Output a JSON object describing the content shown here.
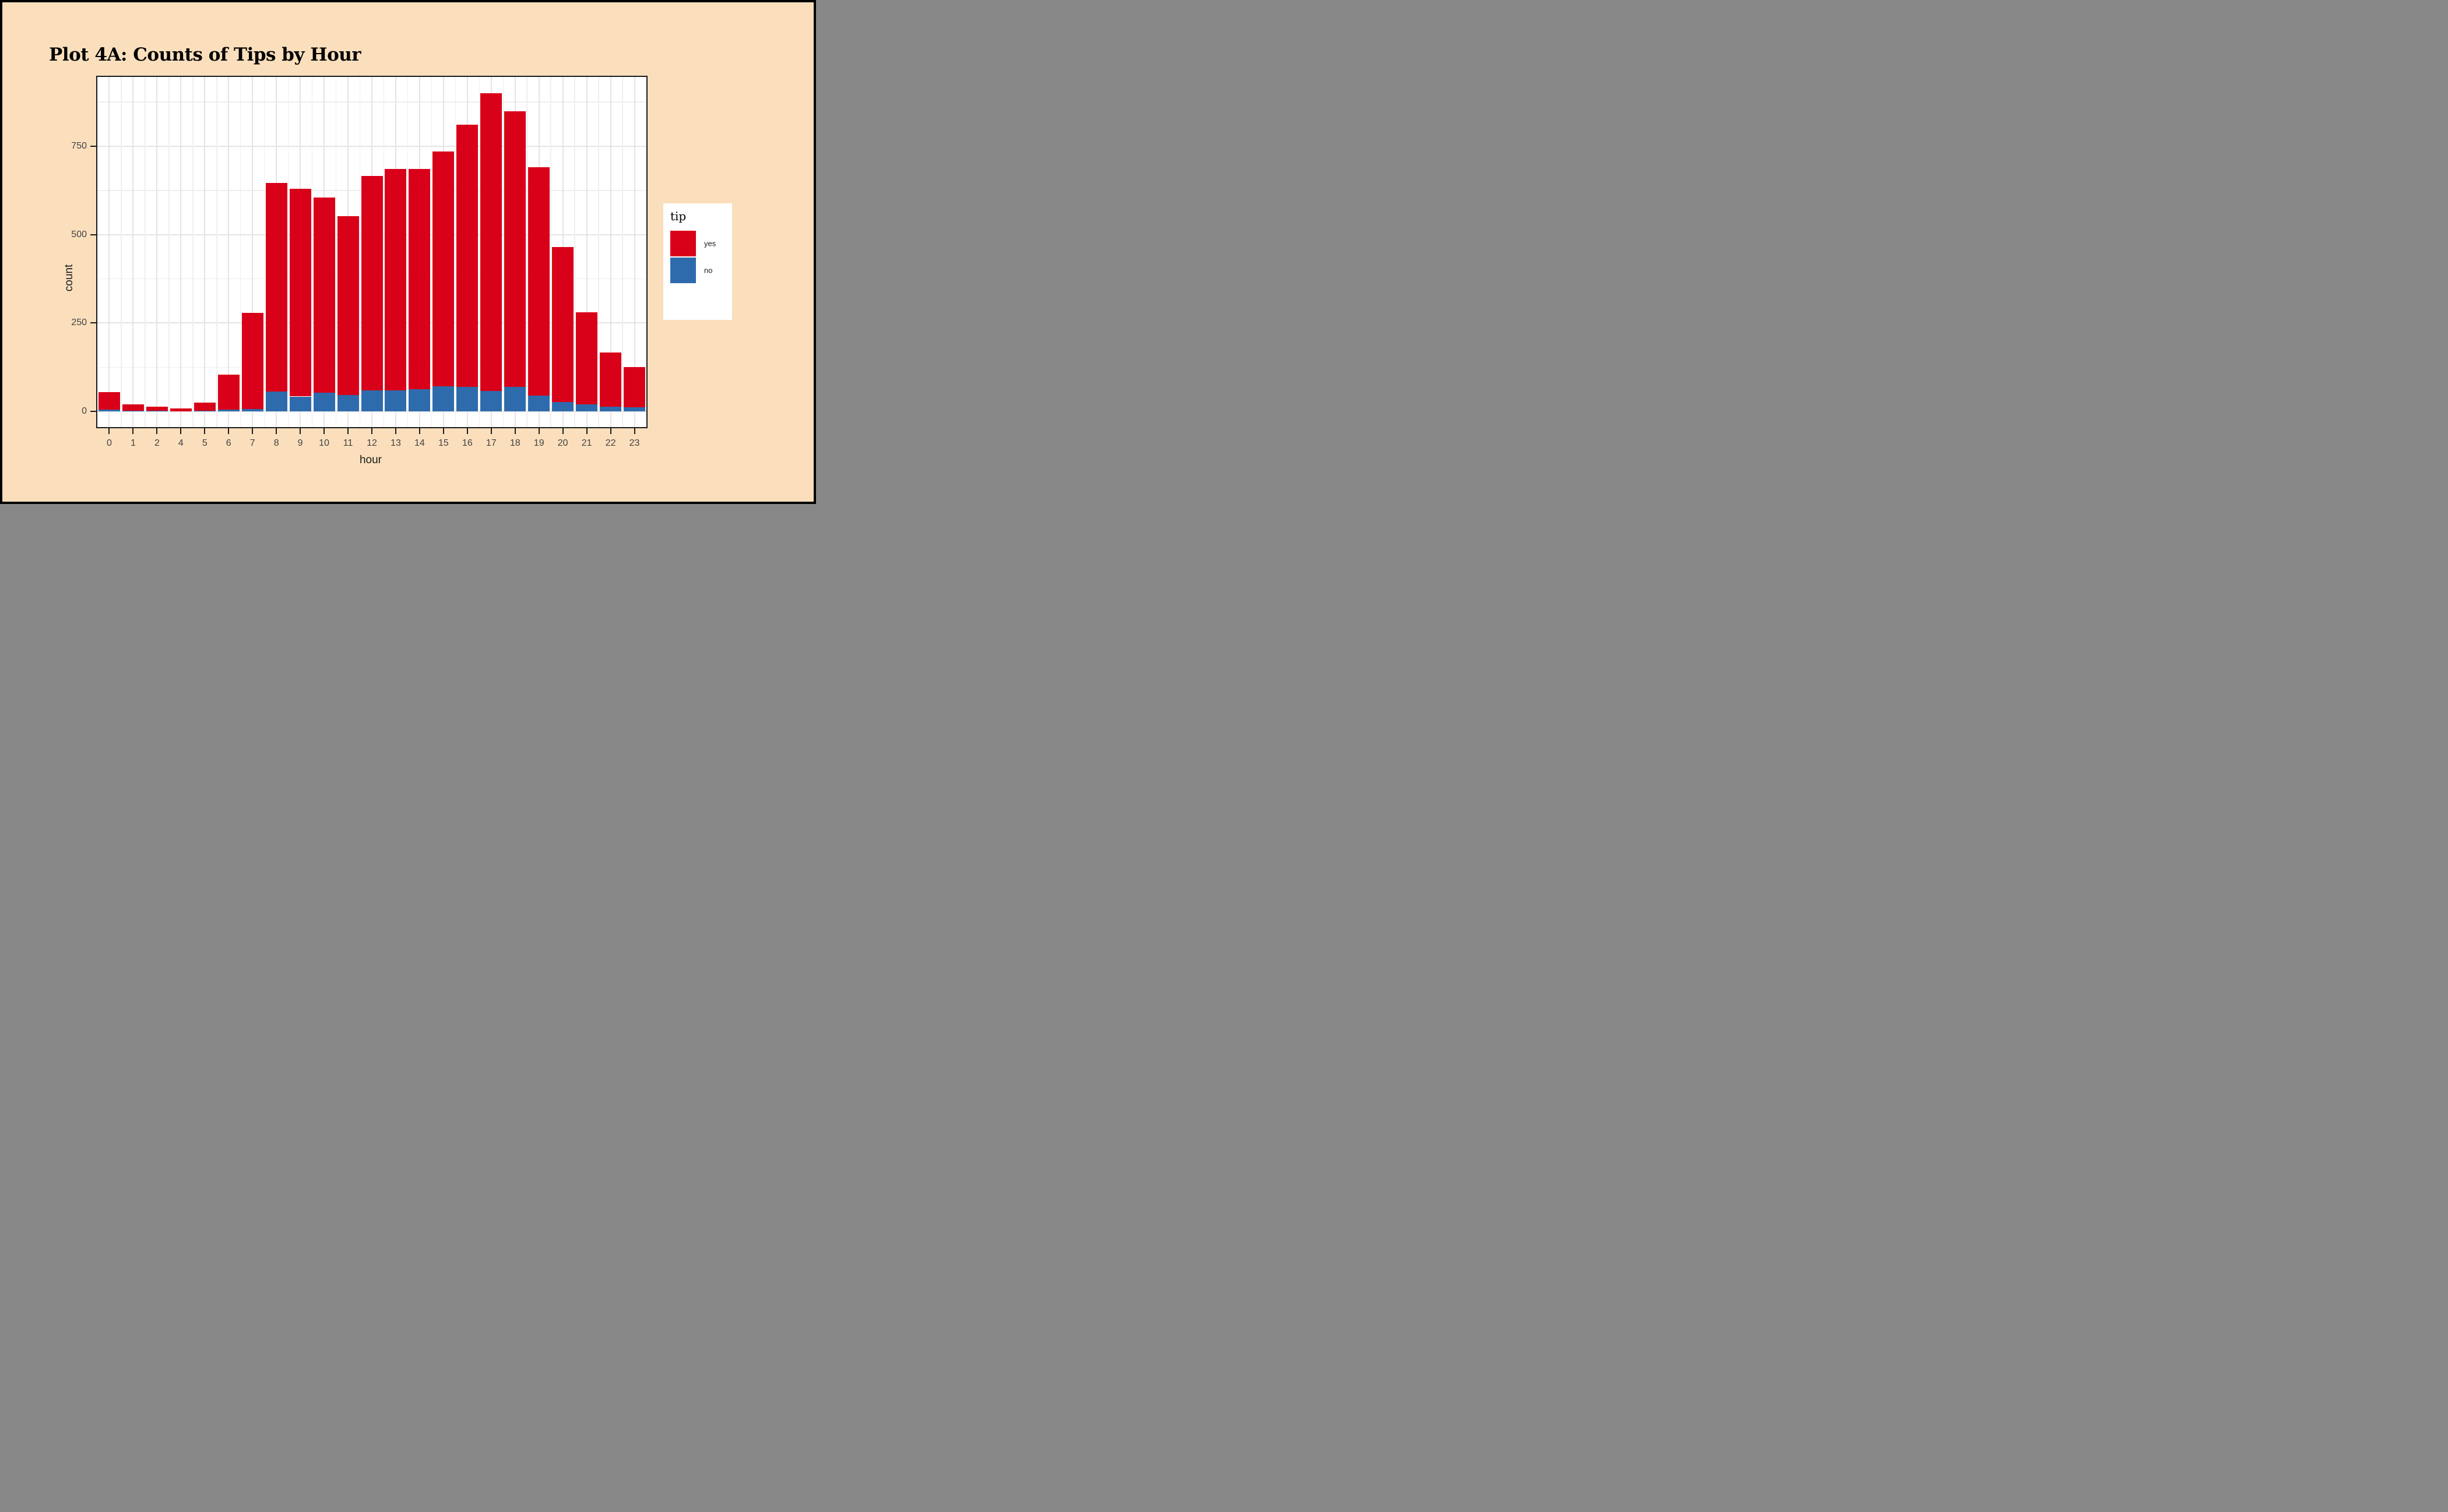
{
  "title": "Plot 4A: Counts of Tips by Hour",
  "colors": {
    "yes": "#d90019",
    "no": "#2e6bac",
    "background": "#fbdfbc",
    "panel": "#ffffff",
    "grid_major": "#e4e4e4",
    "grid_minor": "#efefef",
    "axis_text": "#404040",
    "frame": "#000000"
  },
  "legend": {
    "title": "tip",
    "entries": [
      {
        "label": "yes",
        "color": "#d90019"
      },
      {
        "label": "no",
        "color": "#2e6bac"
      }
    ]
  },
  "chart_data": {
    "type": "bar",
    "stacked": true,
    "title": "Plot 4A: Counts of Tips by Hour",
    "xlabel": "hour",
    "ylabel": "count",
    "categories": [
      "0",
      "1",
      "2",
      "4",
      "5",
      "6",
      "7",
      "8",
      "9",
      "10",
      "11",
      "12",
      "13",
      "14",
      "15",
      "16",
      "17",
      "18",
      "19",
      "20",
      "21",
      "22",
      "23"
    ],
    "series": [
      {
        "name": "no",
        "color": "#2e6bac",
        "values": [
          5,
          2,
          1,
          0,
          2,
          5,
          6,
          56,
          42,
          53,
          46,
          60,
          59,
          62,
          71,
          69,
          57,
          70,
          44,
          26,
          20,
          13,
          12
        ]
      },
      {
        "name": "yes",
        "color": "#d90019",
        "values": [
          50,
          17,
          12,
          8,
          22,
          99,
          272,
          590,
          588,
          552,
          506,
          606,
          626,
          624,
          664,
          742,
          842,
          779,
          647,
          439,
          260,
          154,
          113
        ]
      }
    ],
    "totals": [
      55,
      19,
      13,
      8,
      24,
      104,
      278,
      646,
      630,
      605,
      552,
      666,
      685,
      686,
      735,
      811,
      899,
      849,
      691,
      465,
      280,
      167,
      125
    ],
    "ylim": [
      0,
      945
    ],
    "yticks": [
      0,
      250,
      500,
      750
    ],
    "yticks_minor": [
      125,
      375,
      625,
      875
    ],
    "grid": true,
    "legend_position": "right"
  }
}
